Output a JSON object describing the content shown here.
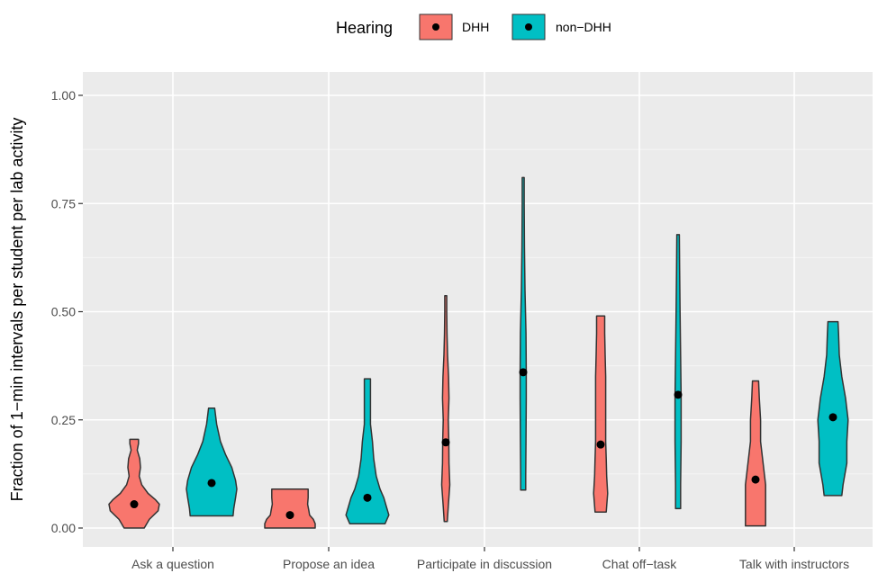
{
  "chart_data": {
    "type": "violin",
    "title": "",
    "xlabel": "",
    "ylabel": "Fraction of 1−min intervals per student per lab activity",
    "ylim": [
      -0.03,
      1.07
    ],
    "yticks": [
      0.0,
      0.25,
      0.5,
      0.75,
      1.0
    ],
    "ytick_labels": [
      "0.00",
      "0.25",
      "0.50",
      "0.75",
      "1.00"
    ],
    "grid": true,
    "legend": {
      "title": "Hearing",
      "placement": "top",
      "entries": [
        "DHH",
        "non−DHH"
      ]
    },
    "categories": [
      "Ask a question",
      "Propose an idea",
      "Participate in discussion",
      "Chat off−task",
      "Talk with instructors"
    ],
    "series": [
      {
        "name": "DHH",
        "color": "#F8766D",
        "means": [
          0.055,
          0.03,
          0.198,
          0.193,
          0.112
        ],
        "violins": [
          [
            [
              0.0,
              0.4
            ],
            [
              0.02,
              0.6
            ],
            [
              0.04,
              0.95
            ],
            [
              0.055,
              1.0
            ],
            [
              0.065,
              0.85
            ],
            [
              0.08,
              0.55
            ],
            [
              0.1,
              0.3
            ],
            [
              0.12,
              0.2
            ],
            [
              0.14,
              0.25
            ],
            [
              0.16,
              0.22
            ],
            [
              0.18,
              0.12
            ],
            [
              0.195,
              0.17
            ],
            [
              0.205,
              0.17
            ]
          ],
          [
            [
              0.0,
              1.0
            ],
            [
              0.01,
              1.0
            ],
            [
              0.02,
              0.93
            ],
            [
              0.03,
              0.78
            ],
            [
              0.04,
              0.75
            ],
            [
              0.055,
              0.7
            ],
            [
              0.07,
              0.72
            ],
            [
              0.085,
              0.72
            ],
            [
              0.09,
              0.72
            ]
          ],
          [
            [
              0.015,
              0.06
            ],
            [
              0.05,
              0.1
            ],
            [
              0.1,
              0.16
            ],
            [
              0.15,
              0.13
            ],
            [
              0.2,
              0.12
            ],
            [
              0.25,
              0.1
            ],
            [
              0.3,
              0.13
            ],
            [
              0.35,
              0.11
            ],
            [
              0.4,
              0.07
            ],
            [
              0.45,
              0.05
            ],
            [
              0.5,
              0.04
            ],
            [
              0.537,
              0.04
            ]
          ],
          [
            [
              0.037,
              0.22
            ],
            [
              0.08,
              0.28
            ],
            [
              0.12,
              0.24
            ],
            [
              0.16,
              0.22
            ],
            [
              0.2,
              0.2
            ],
            [
              0.25,
              0.2
            ],
            [
              0.3,
              0.2
            ],
            [
              0.35,
              0.2
            ],
            [
              0.4,
              0.18
            ],
            [
              0.45,
              0.16
            ],
            [
              0.49,
              0.16
            ]
          ],
          [
            [
              0.005,
              0.4
            ],
            [
              0.05,
              0.4
            ],
            [
              0.1,
              0.4
            ],
            [
              0.15,
              0.3
            ],
            [
              0.2,
              0.2
            ],
            [
              0.25,
              0.2
            ],
            [
              0.3,
              0.15
            ],
            [
              0.34,
              0.12
            ]
          ]
        ]
      },
      {
        "name": "non−DHH",
        "color": "#00BFC4",
        "means": [
          0.104,
          0.07,
          0.36,
          0.308,
          0.256
        ],
        "violins": [
          [
            [
              0.028,
              0.85
            ],
            [
              0.045,
              0.88
            ],
            [
              0.07,
              0.95
            ],
            [
              0.09,
              1.0
            ],
            [
              0.11,
              0.95
            ],
            [
              0.14,
              0.8
            ],
            [
              0.17,
              0.55
            ],
            [
              0.2,
              0.35
            ],
            [
              0.24,
              0.2
            ],
            [
              0.277,
              0.12
            ]
          ],
          [
            [
              0.01,
              0.7
            ],
            [
              0.03,
              0.85
            ],
            [
              0.05,
              0.75
            ],
            [
              0.07,
              0.65
            ],
            [
              0.09,
              0.5
            ],
            [
              0.12,
              0.35
            ],
            [
              0.16,
              0.25
            ],
            [
              0.2,
              0.2
            ],
            [
              0.24,
              0.12
            ],
            [
              0.28,
              0.12
            ],
            [
              0.31,
              0.12
            ],
            [
              0.345,
              0.12
            ]
          ],
          [
            [
              0.088,
              0.1
            ],
            [
              0.12,
              0.1
            ],
            [
              0.2,
              0.11
            ],
            [
              0.3,
              0.12
            ],
            [
              0.36,
              0.12
            ],
            [
              0.45,
              0.11
            ],
            [
              0.55,
              0.07
            ],
            [
              0.65,
              0.05
            ],
            [
              0.75,
              0.04
            ],
            [
              0.81,
              0.04
            ]
          ],
          [
            [
              0.045,
              0.1
            ],
            [
              0.1,
              0.1
            ],
            [
              0.2,
              0.12
            ],
            [
              0.3,
              0.12
            ],
            [
              0.4,
              0.1
            ],
            [
              0.5,
              0.08
            ],
            [
              0.6,
              0.06
            ],
            [
              0.678,
              0.05
            ]
          ],
          [
            [
              0.075,
              0.35
            ],
            [
              0.1,
              0.4
            ],
            [
              0.15,
              0.55
            ],
            [
              0.2,
              0.55
            ],
            [
              0.25,
              0.6
            ],
            [
              0.3,
              0.5
            ],
            [
              0.35,
              0.35
            ],
            [
              0.4,
              0.25
            ],
            [
              0.45,
              0.22
            ],
            [
              0.477,
              0.2
            ]
          ]
        ]
      }
    ]
  }
}
